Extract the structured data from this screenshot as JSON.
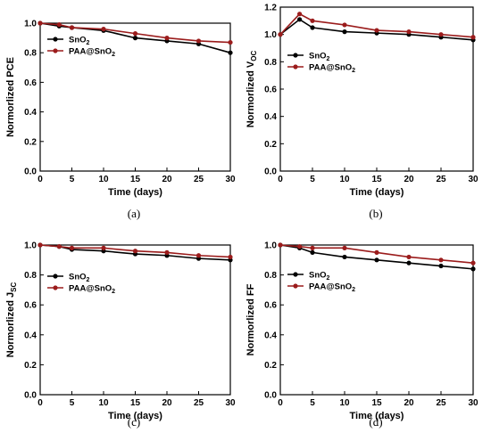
{
  "chart_data": [
    {
      "type": "line",
      "caption": "(a)",
      "ylabel": "Normorlized PCE",
      "xlabel": "Time (days)",
      "xlim": [
        0,
        30
      ],
      "ylim": [
        0.0,
        1.0
      ],
      "xticks": [
        "0",
        "5",
        "10",
        "15",
        "20",
        "25",
        "30"
      ],
      "yticks": [
        "0.0",
        "0.2",
        "0.4",
        "0.6",
        "0.8",
        "1.0"
      ],
      "x": [
        0,
        3,
        5,
        10,
        15,
        20,
        25,
        30
      ],
      "legend_position": "top-left",
      "series": [
        {
          "name": "SnO2",
          "name_main": "SnO",
          "name_sub": "2",
          "name_tail": "",
          "color": "#000000",
          "values": [
            1.0,
            0.98,
            0.97,
            0.95,
            0.9,
            0.88,
            0.86,
            0.8
          ]
        },
        {
          "name": "PAA@SnO2",
          "name_main": "PAA@SnO",
          "name_sub": "2",
          "name_tail": "",
          "color": "#9b1c1c",
          "values": [
            1.0,
            0.99,
            0.97,
            0.96,
            0.93,
            0.9,
            0.88,
            0.87
          ]
        }
      ]
    },
    {
      "type": "line",
      "caption": "(b)",
      "ylabel": "Normorlized VOC",
      "ylabel_main": "Normorlized V",
      "ylabel_sub": "OC",
      "xlabel": "Time (days)",
      "xlim": [
        0,
        30
      ],
      "ylim": [
        0.0,
        1.2
      ],
      "xticks": [
        "0",
        "5",
        "10",
        "15",
        "20",
        "25",
        "30"
      ],
      "yticks": [
        "0.0",
        "0.2",
        "0.4",
        "0.6",
        "0.8",
        "1.0",
        "1.2"
      ],
      "x": [
        0,
        3,
        5,
        10,
        15,
        20,
        25,
        30
      ],
      "legend_position": "center-left",
      "series": [
        {
          "name": "SnO2",
          "name_main": "SnO",
          "name_sub": "2",
          "name_tail": "",
          "color": "#000000",
          "values": [
            1.0,
            1.11,
            1.05,
            1.02,
            1.01,
            1.0,
            0.98,
            0.96
          ]
        },
        {
          "name": "PAA@SnO2",
          "name_main": "PAA@SnO",
          "name_sub": "2",
          "name_tail": "",
          "color": "#9b1c1c",
          "values": [
            1.0,
            1.15,
            1.1,
            1.07,
            1.03,
            1.02,
            1.0,
            0.98
          ]
        }
      ]
    },
    {
      "type": "line",
      "caption": "(c)",
      "ylabel": "Normorlized JSC",
      "ylabel_main": "Normorlized J",
      "ylabel_sub": "SC",
      "xlabel": "Time (days)",
      "xlim": [
        0,
        30
      ],
      "ylim": [
        0.0,
        1.0
      ],
      "xticks": [
        "0",
        "5",
        "10",
        "15",
        "20",
        "25",
        "30"
      ],
      "yticks": [
        "0.0",
        "0.2",
        "0.4",
        "0.6",
        "0.8",
        "1.0"
      ],
      "x": [
        0,
        3,
        5,
        10,
        15,
        20,
        25,
        30
      ],
      "legend_position": "top-left",
      "series": [
        {
          "name": "SnO2",
          "name_main": "SnO",
          "name_sub": "2",
          "name_tail": "",
          "color": "#000000",
          "values": [
            1.0,
            0.99,
            0.97,
            0.96,
            0.94,
            0.93,
            0.91,
            0.9
          ]
        },
        {
          "name": "PAA@SnO2",
          "name_main": "PAA@SnO",
          "name_sub": "2",
          "name_tail": "",
          "color": "#9b1c1c",
          "values": [
            1.0,
            0.99,
            0.98,
            0.98,
            0.96,
            0.95,
            0.93,
            0.92
          ]
        }
      ]
    },
    {
      "type": "line",
      "caption": "(d)",
      "ylabel": "Normorlized FF",
      "xlabel": "Time (days)",
      "xlim": [
        0,
        30
      ],
      "ylim": [
        0.0,
        1.0
      ],
      "xticks": [
        "0",
        "5",
        "10",
        "15",
        "20",
        "25",
        "30"
      ],
      "yticks": [
        "0.0",
        "0.2",
        "0.4",
        "0.6",
        "0.8",
        "1.0"
      ],
      "x": [
        0,
        3,
        5,
        10,
        15,
        20,
        25,
        30
      ],
      "legend_position": "top-left",
      "series": [
        {
          "name": "SnO2",
          "name_main": "SnO",
          "name_sub": "2",
          "name_tail": "",
          "color": "#000000",
          "values": [
            1.0,
            0.98,
            0.95,
            0.92,
            0.9,
            0.88,
            0.86,
            0.84
          ]
        },
        {
          "name": "PAA@SnO2",
          "name_main": "PAA@SnO",
          "name_sub": "2",
          "name_tail": "",
          "color": "#9b1c1c",
          "values": [
            1.0,
            0.99,
            0.98,
            0.98,
            0.95,
            0.92,
            0.9,
            0.88
          ]
        }
      ]
    }
  ]
}
